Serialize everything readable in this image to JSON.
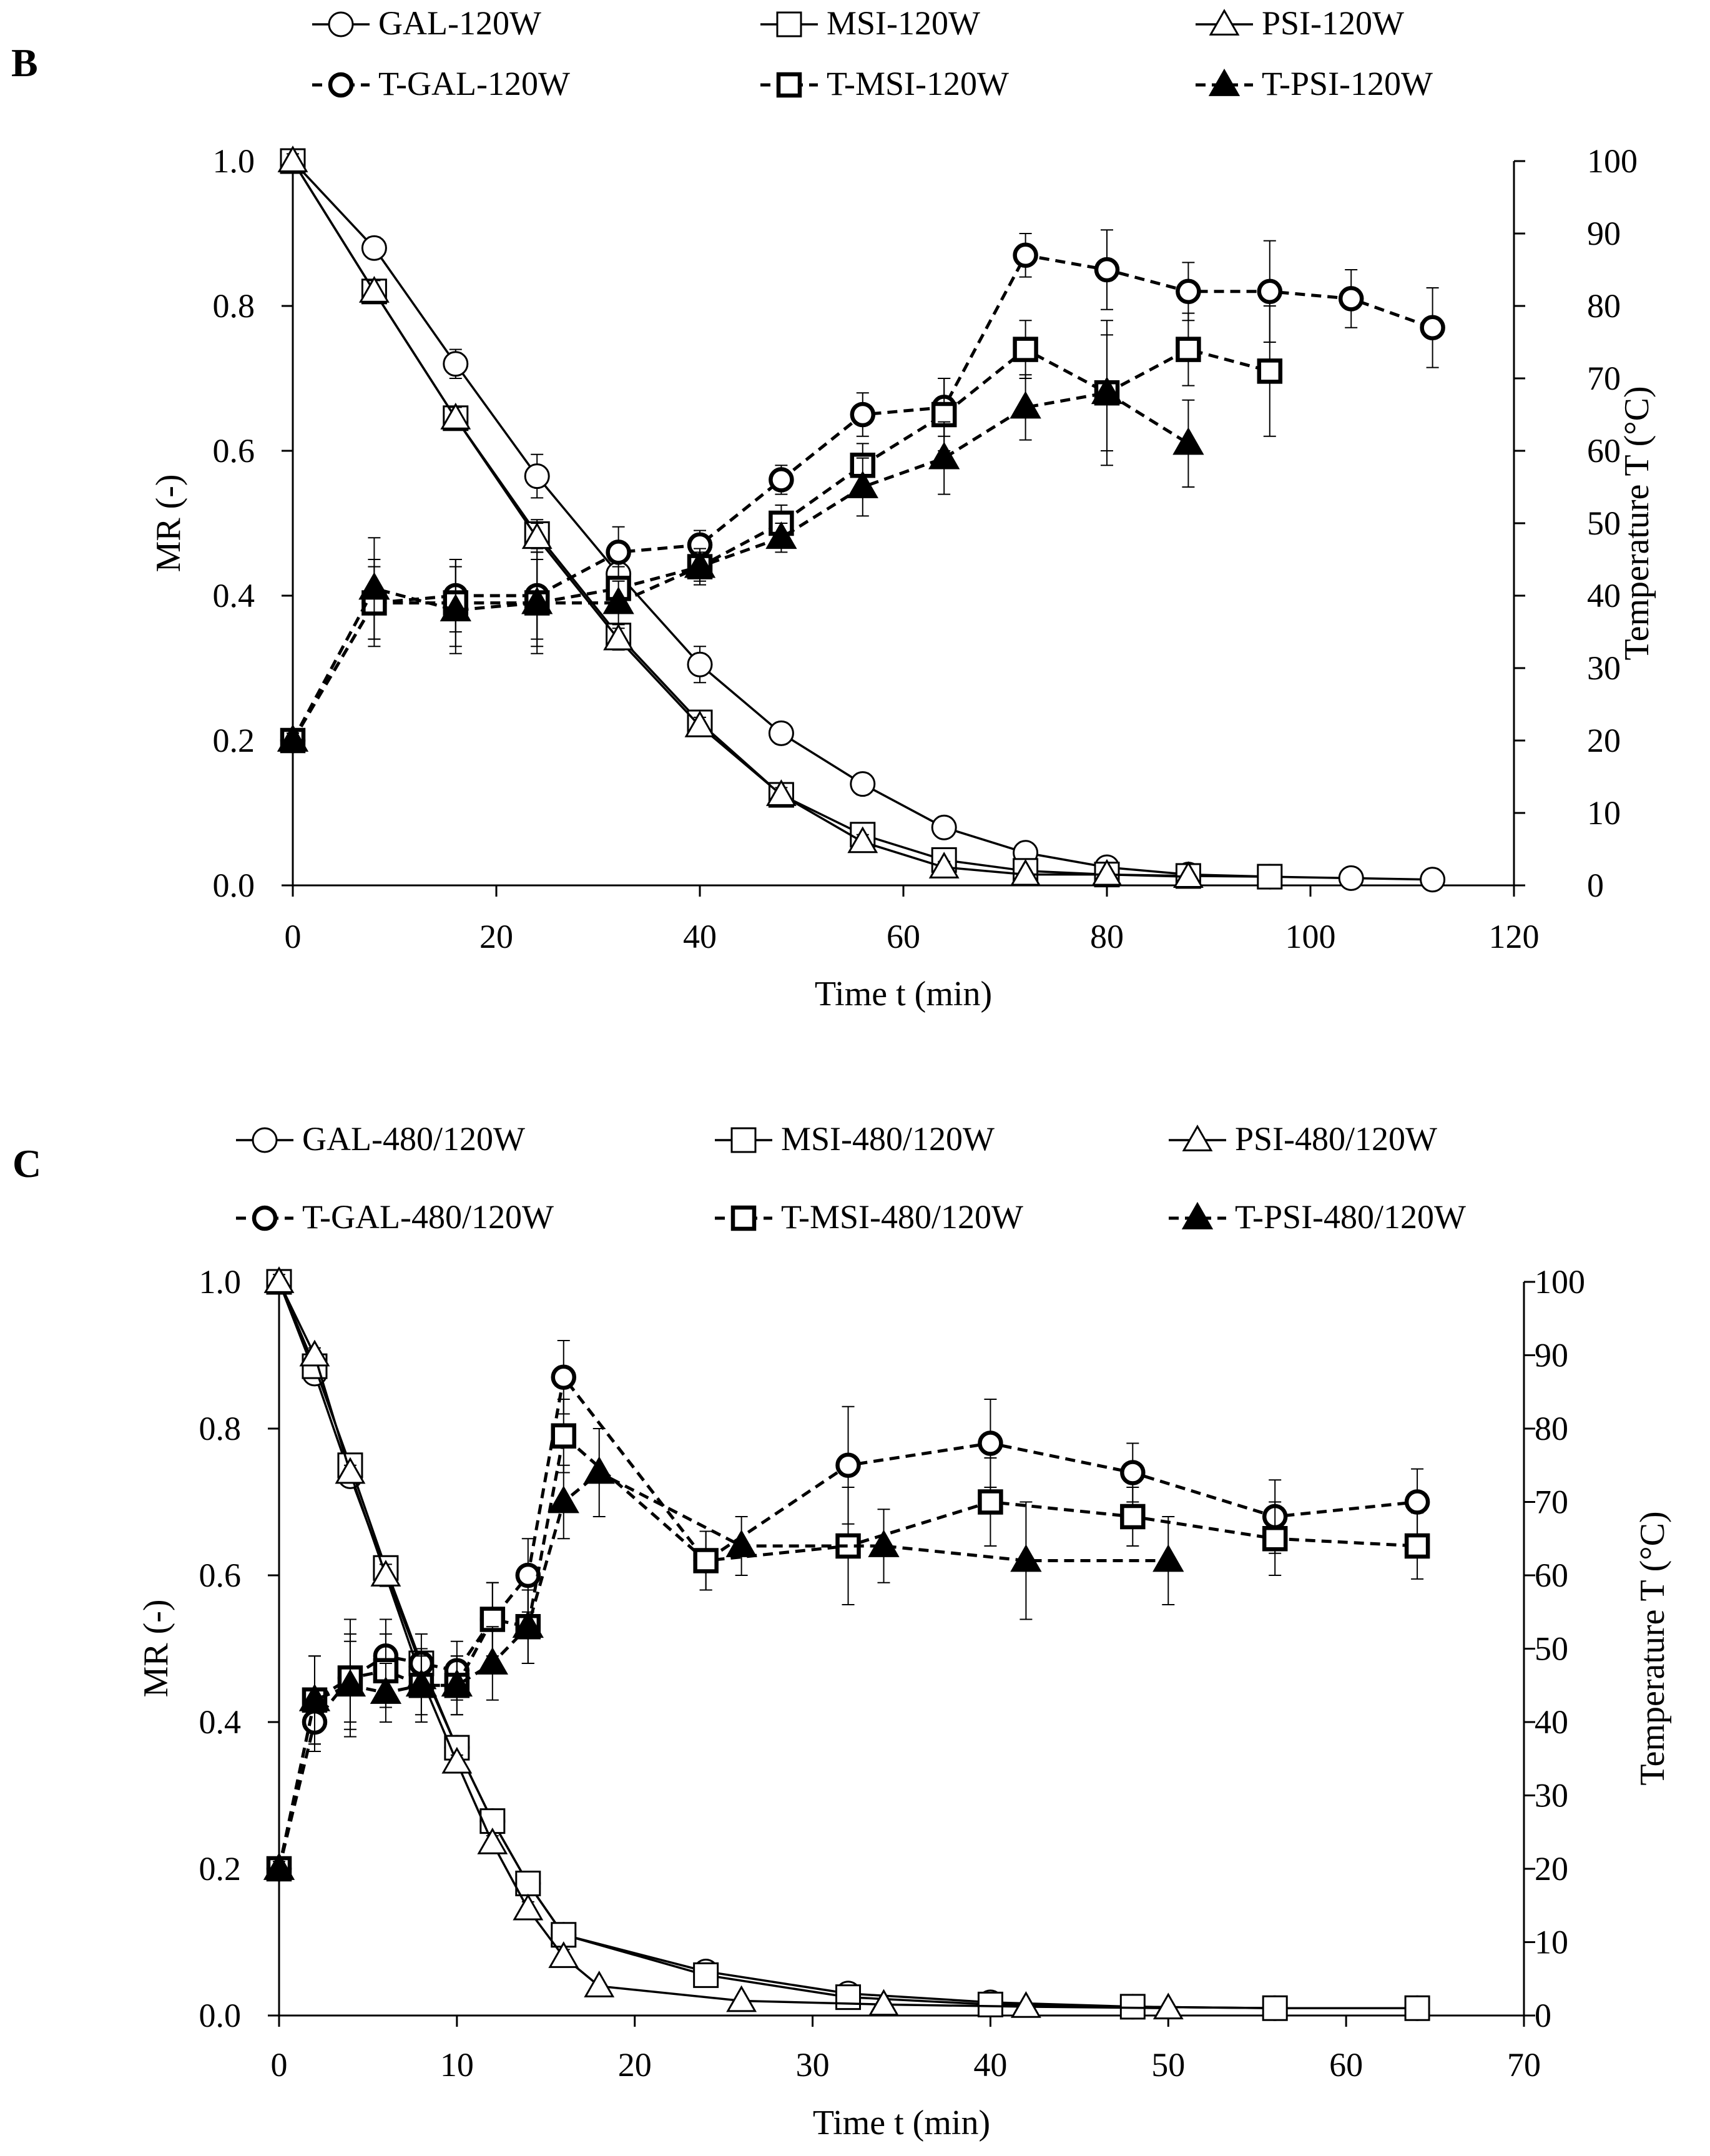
{
  "chart_data": [
    {
      "panel": "B",
      "type": "line",
      "xlabel": "Time t (min)",
      "ylabel": "MR (-)",
      "y2label": "Temperature T (°C)",
      "xlim": [
        0,
        120
      ],
      "ylim": [
        0,
        1.0
      ],
      "y2lim": [
        0,
        100
      ],
      "xticks": [
        "0",
        "20",
        "40",
        "60",
        "80",
        "100",
        "120"
      ],
      "yticks": [
        "0.0",
        "0.2",
        "0.4",
        "0.6",
        "0.8",
        "1.0"
      ],
      "y2ticks": [
        "0",
        "10",
        "20",
        "30",
        "40",
        "50",
        "60",
        "70",
        "80",
        "90",
        "100"
      ],
      "legend_position": "top",
      "grid": false,
      "series": [
        {
          "name": "GAL-120W",
          "axis": "left",
          "marker": "circle",
          "filled": false,
          "dashed": false,
          "bold": false,
          "x": [
            0,
            8,
            16,
            24,
            32,
            40,
            48,
            56,
            64,
            72,
            80,
            88,
            96,
            104,
            112
          ],
          "y": [
            1.0,
            0.88,
            0.72,
            0.565,
            0.43,
            0.305,
            0.21,
            0.14,
            0.08,
            0.045,
            0.025,
            0.015,
            0.012,
            0.01,
            0.008
          ],
          "err": [
            0.01,
            0.015,
            0.02,
            0.03,
            0.035,
            0.025,
            0.015,
            0.015,
            0.01,
            0.008,
            0.005,
            0.005,
            0.004,
            0.003,
            0.003
          ]
        },
        {
          "name": "MSI-120W",
          "axis": "left",
          "marker": "square",
          "filled": false,
          "dashed": false,
          "bold": false,
          "x": [
            0,
            8,
            16,
            24,
            32,
            40,
            48,
            56,
            64,
            72,
            80,
            88,
            96
          ],
          "y": [
            1.0,
            0.82,
            0.645,
            0.485,
            0.345,
            0.225,
            0.125,
            0.07,
            0.035,
            0.02,
            0.015,
            0.013,
            0.012
          ],
          "err": [
            0.01,
            0.015,
            0.015,
            0.02,
            0.015,
            0.012,
            0.01,
            0.01,
            0.008,
            0.006,
            0.005,
            0.004,
            0.004
          ]
        },
        {
          "name": "PSI-120W",
          "axis": "left",
          "marker": "triangle",
          "filled": false,
          "dashed": false,
          "bold": false,
          "x": [
            0,
            8,
            16,
            24,
            32,
            40,
            48,
            56,
            64,
            72,
            80,
            88
          ],
          "y": [
            1.0,
            0.82,
            0.645,
            0.48,
            0.34,
            0.22,
            0.125,
            0.06,
            0.025,
            0.015,
            0.015,
            0.012
          ],
          "err": [
            0.01,
            0.015,
            0.015,
            0.02,
            0.015,
            0.012,
            0.01,
            0.01,
            0.008,
            0.006,
            0.005,
            0.004
          ]
        },
        {
          "name": "T-GAL-120W",
          "axis": "right",
          "marker": "circle",
          "filled": false,
          "dashed": true,
          "bold": true,
          "x": [
            0,
            8,
            16,
            24,
            32,
            40,
            48,
            56,
            64,
            72,
            80,
            88,
            96,
            104,
            112
          ],
          "y": [
            20,
            39,
            40,
            40,
            46,
            47,
            56,
            65,
            66,
            87,
            85,
            82,
            82,
            81,
            77
          ],
          "err": [
            1,
            5,
            5,
            6,
            3.5,
            2,
            2,
            3,
            4,
            3,
            5.5,
            4,
            7,
            4,
            5.5
          ]
        },
        {
          "name": "T-MSI-120W",
          "axis": "right",
          "marker": "square",
          "filled": false,
          "dashed": true,
          "bold": true,
          "x": [
            0,
            8,
            16,
            24,
            32,
            40,
            48,
            56,
            64,
            72,
            80,
            88,
            96
          ],
          "y": [
            20,
            39,
            39,
            39,
            41,
            44,
            50,
            58,
            65,
            74,
            68,
            74,
            71
          ],
          "err": [
            1,
            6,
            6,
            7,
            3,
            2.5,
            2.5,
            3,
            5,
            4,
            8,
            5,
            9
          ]
        },
        {
          "name": "T-PSI-120W",
          "axis": "right",
          "marker": "triangle",
          "filled": true,
          "dashed": true,
          "bold": true,
          "x": [
            0,
            8,
            16,
            24,
            32,
            40,
            48,
            56,
            64,
            72,
            80,
            88
          ],
          "y": [
            20,
            41,
            38,
            39,
            39,
            44,
            48,
            55,
            59,
            66,
            68,
            61
          ],
          "err": [
            1,
            7,
            6,
            6,
            3,
            2,
            2,
            4,
            5,
            4.5,
            10,
            6
          ]
        }
      ]
    },
    {
      "panel": "C",
      "type": "line",
      "xlabel": "Time t (min)",
      "ylabel": "MR (-)",
      "y2label": "Temperature T (°C)",
      "xlim": [
        0,
        70
      ],
      "ylim": [
        0,
        1.0
      ],
      "y2lim": [
        0,
        100
      ],
      "xticks": [
        "0",
        "10",
        "20",
        "30",
        "40",
        "50",
        "60",
        "70"
      ],
      "yticks": [
        "0.0",
        "0.2",
        "0.4",
        "0.6",
        "0.8",
        "1.0"
      ],
      "y2ticks": [
        "0",
        "10",
        "20",
        "30",
        "40",
        "50",
        "60",
        "70",
        "80",
        "90",
        "100"
      ],
      "legend_position": "top",
      "grid": false,
      "series": [
        {
          "name": "GAL-480/120W",
          "axis": "left",
          "marker": "circle",
          "filled": false,
          "dashed": false,
          "bold": false,
          "x": [
            0,
            2,
            4,
            6,
            8,
            10,
            12,
            14,
            16,
            24,
            32,
            40,
            48,
            56,
            64
          ],
          "y": [
            1.0,
            0.875,
            0.735,
            0.605,
            0.475,
            0.365,
            0.265,
            0.18,
            0.11,
            0.06,
            0.03,
            0.018,
            0.012,
            0.01,
            0.01
          ],
          "err": [
            0.01,
            0.01,
            0.01,
            0.015,
            0.015,
            0.01,
            0.01,
            0.01,
            0.01,
            0.005,
            0.005,
            0.004,
            0.003,
            0.003,
            0.003
          ]
        },
        {
          "name": "MSI-480/120W",
          "axis": "left",
          "marker": "square",
          "filled": false,
          "dashed": false,
          "bold": false,
          "x": [
            0,
            2,
            4,
            6,
            8,
            10,
            12,
            14,
            16,
            24,
            32,
            40,
            48,
            56,
            64
          ],
          "y": [
            1.0,
            0.885,
            0.75,
            0.61,
            0.48,
            0.365,
            0.265,
            0.18,
            0.11,
            0.055,
            0.025,
            0.015,
            0.012,
            0.01,
            0.01
          ],
          "err": [
            0.01,
            0.01,
            0.01,
            0.015,
            0.015,
            0.01,
            0.01,
            0.01,
            0.01,
            0.005,
            0.005,
            0.004,
            0.003,
            0.003,
            0.003
          ]
        },
        {
          "name": "PSI-480/120W",
          "axis": "left",
          "marker": "triangle",
          "filled": false,
          "dashed": false,
          "bold": false,
          "x": [
            0,
            2,
            4,
            6,
            8,
            10,
            12,
            14,
            16,
            18,
            26,
            34,
            42,
            50
          ],
          "y": [
            1.0,
            0.9,
            0.74,
            0.6,
            0.46,
            0.345,
            0.235,
            0.145,
            0.08,
            0.04,
            0.02,
            0.015,
            0.012,
            0.01
          ],
          "err": [
            0.01,
            0.01,
            0.01,
            0.015,
            0.015,
            0.01,
            0.01,
            0.01,
            0.01,
            0.005,
            0.004,
            0.003,
            0.003,
            0.003
          ]
        },
        {
          "name": "T-GAL-480/120W",
          "axis": "right",
          "marker": "circle",
          "filled": false,
          "dashed": true,
          "bold": true,
          "x": [
            0,
            2,
            4,
            6,
            8,
            10,
            12,
            14,
            16,
            24,
            32,
            40,
            48,
            56,
            64
          ],
          "y": [
            20,
            40,
            46,
            49,
            48,
            47,
            54,
            60,
            87,
            62,
            75,
            78,
            74,
            68,
            70
          ],
          "err": [
            1,
            4,
            8,
            5,
            4,
            4,
            5,
            5,
            5,
            4,
            8,
            6,
            4,
            5,
            4.5
          ]
        },
        {
          "name": "T-MSI-480/120W",
          "axis": "right",
          "marker": "square",
          "filled": false,
          "dashed": true,
          "bold": true,
          "x": [
            0,
            2,
            4,
            6,
            8,
            10,
            12,
            14,
            16,
            24,
            32,
            40,
            48,
            56,
            64
          ],
          "y": [
            20,
            43,
            46,
            47,
            45,
            45,
            54,
            53,
            79,
            62,
            64,
            70,
            68,
            65,
            64
          ],
          "err": [
            1,
            6,
            6,
            5,
            5,
            4,
            5,
            5,
            5,
            4,
            8,
            6,
            4,
            5,
            4.5
          ]
        },
        {
          "name": "T-PSI-480/120W",
          "axis": "right",
          "marker": "triangle",
          "filled": true,
          "dashed": true,
          "bold": true,
          "x": [
            0,
            2,
            4,
            6,
            8,
            10,
            12,
            14,
            16,
            18,
            26,
            34,
            42,
            50
          ],
          "y": [
            20,
            43,
            45,
            44,
            45,
            45,
            48,
            53,
            70,
            74,
            64,
            64,
            62,
            62
          ],
          "err": [
            1,
            6,
            6,
            4,
            4,
            4,
            5,
            5,
            5,
            6,
            4,
            5,
            8,
            6
          ]
        }
      ]
    }
  ]
}
